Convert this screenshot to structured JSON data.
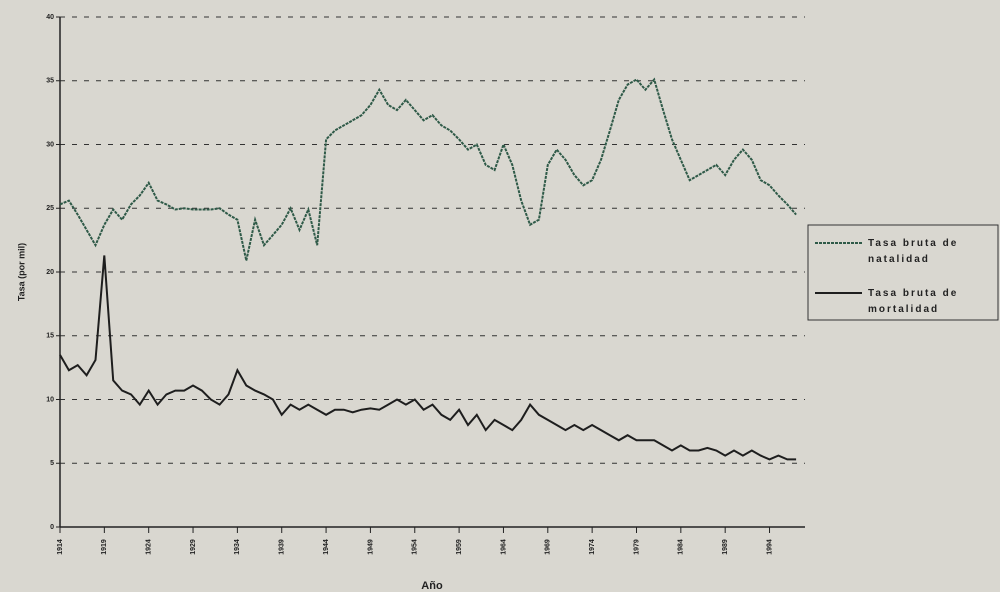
{
  "chart_data": {
    "type": "line",
    "ylabel": "Tasa (por mil)",
    "xlabel": "Año",
    "x": [
      1914,
      1915,
      1916,
      1917,
      1918,
      1919,
      1920,
      1921,
      1922,
      1923,
      1924,
      1925,
      1926,
      1927,
      1928,
      1929,
      1930,
      1931,
      1932,
      1933,
      1934,
      1935,
      1936,
      1937,
      1938,
      1939,
      1940,
      1941,
      1942,
      1943,
      1944,
      1945,
      1946,
      1947,
      1948,
      1949,
      1950,
      1951,
      1952,
      1953,
      1954,
      1955,
      1956,
      1957,
      1958,
      1959,
      1960,
      1961,
      1962,
      1963,
      1964,
      1965,
      1966,
      1967,
      1968,
      1969,
      1970,
      1971,
      1972,
      1973,
      1974,
      1975,
      1976,
      1977,
      1978,
      1979,
      1980,
      1981,
      1982,
      1983,
      1984,
      1985,
      1986,
      1987,
      1988,
      1989,
      1990,
      1991,
      1992,
      1993,
      1994,
      1995,
      1996,
      1997
    ],
    "series": [
      {
        "name": "Tasa bruta de natalidad",
        "color": "#2f5a48",
        "values": [
          25.3,
          25.6,
          24.5,
          23.3,
          22.1,
          23.7,
          24.9,
          24.1,
          25.3,
          26,
          27,
          25.6,
          25.3,
          24.9,
          25,
          24.9,
          24.9,
          24.9,
          25,
          24.5,
          24.1,
          20.9,
          24.1,
          22.1,
          22.9,
          23.7,
          25,
          23.3,
          24.9,
          22.1,
          30.4,
          31.1,
          31.5,
          31.9,
          32.3,
          33.1,
          34.3,
          33.1,
          32.7,
          33.5,
          32.7,
          31.9,
          32.3,
          31.5,
          31.1,
          30.4,
          29.6,
          30,
          28.4,
          28,
          30,
          28.4,
          25.6,
          23.7,
          24.1,
          28.4,
          29.6,
          28.8,
          27.6,
          26.8,
          27.2,
          28.8,
          31.1,
          33.5,
          34.7,
          35.1,
          34.3,
          35.1,
          32.7,
          30.4,
          28.8,
          27.2,
          27.6,
          28,
          28.4,
          27.6,
          28.8,
          29.6,
          28.8,
          27.2,
          26.8,
          26,
          25.3,
          24.5
        ]
      },
      {
        "name": "Tasa bruta de mortalidad",
        "color": "#1e1e1e",
        "values": [
          13.5,
          12.3,
          12.7,
          11.9,
          13.1,
          21.3,
          11.5,
          10.7,
          10.4,
          9.6,
          10.7,
          9.6,
          10.4,
          10.7,
          10.7,
          11.1,
          10.7,
          10,
          9.6,
          10.4,
          12.3,
          11.1,
          10.7,
          10.4,
          10,
          8.8,
          9.6,
          9.2,
          9.6,
          9.2,
          8.8,
          9.2,
          9.2,
          9,
          9.2,
          9.3,
          9.2,
          9.6,
          10,
          9.6,
          10,
          9.2,
          9.6,
          8.8,
          8.4,
          9.2,
          8,
          8.8,
          7.6,
          8.4,
          8,
          7.6,
          8.4,
          9.6,
          8.8,
          8.4,
          8,
          7.6,
          8,
          7.6,
          8,
          7.6,
          7.2,
          6.8,
          7.2,
          6.8,
          6.8,
          6.8,
          6.4,
          6,
          6.4,
          6,
          6,
          6.2,
          6,
          5.6,
          6,
          5.6,
          6,
          5.6,
          5.3,
          5.6,
          5.3,
          5.3
        ]
      }
    ],
    "xlim": [
      1914,
      1998
    ],
    "xticks": [
      1914,
      1919,
      1924,
      1929,
      1934,
      1939,
      1944,
      1949,
      1954,
      1959,
      1964,
      1969,
      1974,
      1979,
      1984,
      1989,
      1994
    ],
    "ylim": [
      0,
      40
    ],
    "yticks": [
      0,
      5,
      10,
      15,
      20,
      25,
      30,
      35,
      40
    ],
    "grid": true,
    "legend": "right"
  }
}
